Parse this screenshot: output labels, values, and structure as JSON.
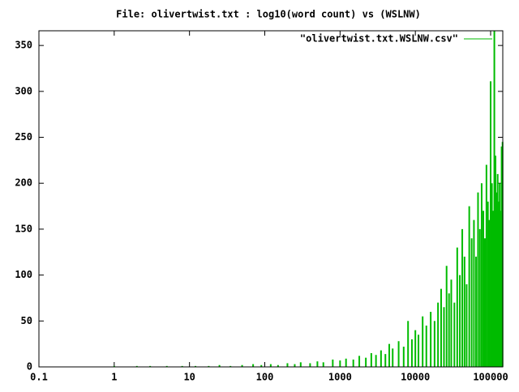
{
  "chart_data": {
    "type": "impulse",
    "title": "File: olivertwist.txt : log10(word count) vs (WSLNW)",
    "xscale": "log",
    "xlim": [
      0.1,
      145000
    ],
    "ylim": [
      0,
      366
    ],
    "xticks": [
      0.1,
      1,
      10,
      100,
      1000,
      10000,
      100000
    ],
    "yticks": [
      0,
      50,
      100,
      150,
      200,
      250,
      300,
      350
    ],
    "legend_position": "top-right",
    "series": [
      {
        "name": "\"olivertwist.txt.WSLNW.csv\"",
        "color": "#00bb00",
        "x": [
          1,
          2,
          3,
          5,
          8,
          12,
          18,
          25,
          35,
          50,
          70,
          90,
          120,
          150,
          200,
          250,
          300,
          400,
          500,
          600,
          800,
          1000,
          1200,
          1500,
          1800,
          2200,
          2600,
          3000,
          3500,
          4000,
          4500,
          5000,
          6000,
          7000,
          8000,
          9000,
          10000,
          11000,
          12500,
          14000,
          16000,
          18000,
          20000,
          22000,
          24000,
          26000,
          28000,
          30000,
          33000,
          36000,
          39000,
          42000,
          45000,
          48000,
          52000,
          56000,
          60000,
          64000,
          68000,
          72000,
          76000,
          80000,
          84000,
          88000,
          92000,
          96000,
          100000,
          104000,
          108000,
          112000,
          116000,
          120000,
          124000,
          128000,
          132000,
          136000,
          140000,
          144000
        ],
        "values": [
          1,
          1,
          1,
          1,
          1,
          1,
          1,
          2,
          1,
          2,
          3,
          2,
          3,
          2,
          4,
          3,
          5,
          4,
          6,
          5,
          8,
          7,
          9,
          8,
          12,
          10,
          15,
          13,
          18,
          14,
          25,
          20,
          28,
          22,
          50,
          30,
          40,
          35,
          55,
          45,
          60,
          50,
          70,
          85,
          65,
          110,
          80,
          95,
          70,
          130,
          100,
          150,
          120,
          90,
          175,
          140,
          160,
          120,
          190,
          150,
          200,
          170,
          140,
          220,
          180,
          160,
          311,
          200,
          170,
          366,
          230,
          190,
          210,
          180,
          200,
          170,
          240,
          245
        ]
      }
    ]
  }
}
